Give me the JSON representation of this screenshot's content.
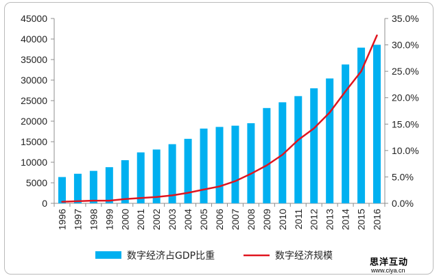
{
  "chart_data": {
    "type": "bar",
    "categories": [
      "1996",
      "1997",
      "1998",
      "1999",
      "2000",
      "2001",
      "2002",
      "2003",
      "2004",
      "2005",
      "2006",
      "2007",
      "2008",
      "2009",
      "2010",
      "2011",
      "2012",
      "2013",
      "2014",
      "2015",
      "2016"
    ],
    "series": [
      {
        "name": "数字经济占GDP比重",
        "type": "bar",
        "axis": "left",
        "color": "#00b0f0",
        "values": [
          6400,
          7200,
          7900,
          8800,
          10500,
          12400,
          13100,
          14400,
          15700,
          18200,
          18600,
          18900,
          19500,
          23200,
          24600,
          26100,
          28000,
          30400,
          33800,
          37900,
          38600
        ]
      },
      {
        "name": "数字经济规模",
        "type": "line",
        "axis": "right",
        "color": "#e0141e",
        "values": [
          0.3,
          0.4,
          0.5,
          0.5,
          0.8,
          1.0,
          1.2,
          1.5,
          2.0,
          2.6,
          3.2,
          4.2,
          5.6,
          7.2,
          9.2,
          12.0,
          14.2,
          17.2,
          21.2,
          25.0,
          31.8
        ]
      }
    ],
    "y_left": {
      "ylim": [
        0,
        45000
      ],
      "ticks": [
        0,
        5000,
        10000,
        15000,
        20000,
        25000,
        30000,
        35000,
        40000,
        45000
      ]
    },
    "y_right": {
      "ylim": [
        0,
        35
      ],
      "ticks": [
        "0.0%",
        "5.0%",
        "10.0%",
        "15.0%",
        "20.0%",
        "25.0%",
        "30.0%",
        "35.0%"
      ]
    },
    "legend": {
      "placement": "bottom"
    },
    "grid": false
  },
  "watermark": {
    "name": "思洋互动",
    "url": "www.ciya.cn"
  }
}
